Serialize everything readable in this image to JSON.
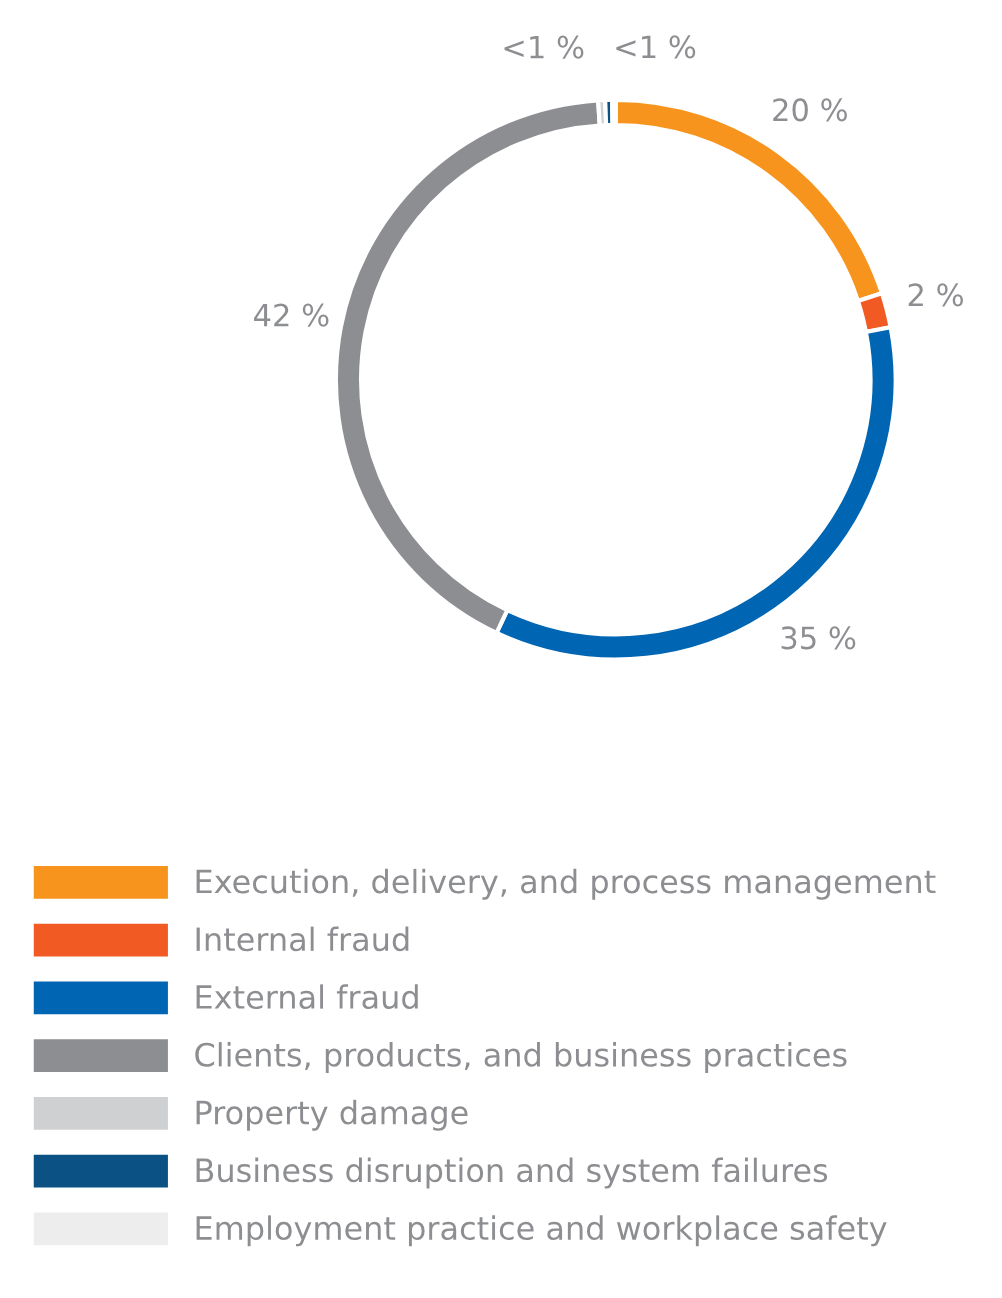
{
  "chart_data": {
    "type": "donut",
    "categories": [
      "Execution, delivery, and process management",
      "Internal fraud",
      "External fraud",
      "Clients, products, and business practices",
      "Property damage",
      "Business disruption and system failures",
      "Employment practice and workplace safety"
    ],
    "values": [
      20,
      2,
      35,
      42,
      0.4,
      0.4,
      0.2
    ],
    "value_labels": [
      "20 %",
      "2 %",
      "35 %",
      "42 %",
      "<1 %",
      "<1 %",
      null
    ],
    "colors": [
      "#f7941d",
      "#f15a22",
      "#0066b3",
      "#8d8e91",
      "#cfd0d2",
      "#0b5184",
      "#ededee"
    ],
    "legend": "bottom"
  }
}
